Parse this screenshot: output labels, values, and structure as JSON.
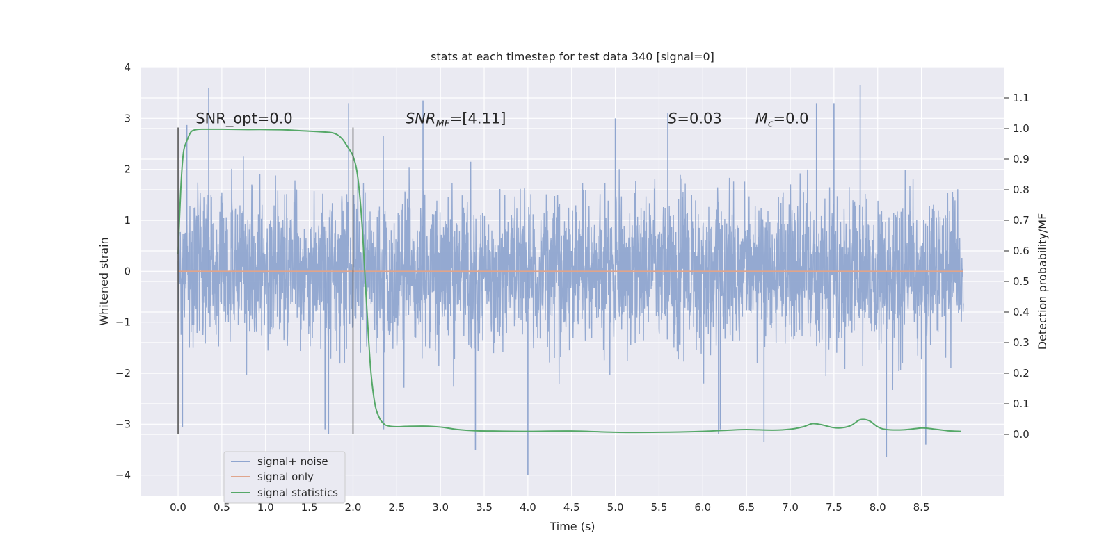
{
  "chart_data": {
    "type": "line",
    "title": "stats at each timestep for test data 340 [signal=0]",
    "xlabel": "Time (s)",
    "ylabel": "Whitened strain",
    "y2label": "Detection probability/MF",
    "xlim": [
      -0.43,
      9.45
    ],
    "ylim": [
      -4.4,
      4.0
    ],
    "y2lim": [
      -0.2,
      1.2
    ],
    "xticks": [
      0.0,
      0.5,
      1.0,
      1.5,
      2.0,
      2.5,
      3.0,
      3.5,
      4.0,
      4.5,
      5.0,
      5.5,
      6.0,
      6.5,
      7.0,
      7.5,
      8.0,
      8.5
    ],
    "xtick_labels": [
      "0.0",
      "0.5",
      "1.0",
      "1.5",
      "2.0",
      "2.5",
      "3.0",
      "3.5",
      "4.0",
      "4.5",
      "5.0",
      "5.5",
      "6.0",
      "6.5",
      "7.0",
      "7.5",
      "8.0",
      "8.5"
    ],
    "yticks": [
      -4,
      -3,
      -2,
      -1,
      0,
      1,
      2,
      3,
      4
    ],
    "ytick_labels": [
      "−4",
      "−3",
      "−2",
      "−1",
      "0",
      "1",
      "2",
      "3",
      "4"
    ],
    "y2ticks": [
      0.0,
      0.1,
      0.2,
      0.3,
      0.4,
      0.5,
      0.6,
      0.7,
      0.8,
      0.9,
      1.0,
      1.1
    ],
    "y2tick_labels": [
      "0.0",
      "0.1",
      "0.2",
      "0.3",
      "0.4",
      "0.5",
      "0.6",
      "0.7",
      "0.8",
      "0.9",
      "1.0",
      "1.1"
    ],
    "grid": true,
    "legend_position": "lower-left",
    "vlines": [
      {
        "x": 0.0,
        "ymin": -3.2,
        "ymax": 2.82
      },
      {
        "x": 2.0,
        "ymin": -3.2,
        "ymax": 2.82
      }
    ],
    "annotations": [
      {
        "name": "snr-opt",
        "parts": [
          {
            "t": "SNR_opt=0.0",
            "style": "normal"
          }
        ],
        "x": 0.2,
        "y": 2.9
      },
      {
        "name": "snr-mf",
        "parts": [
          {
            "t": "SNR",
            "style": "italic"
          },
          {
            "t": "MF",
            "style": "italic-sub"
          },
          {
            "t": "=[4.11]",
            "style": "normal"
          }
        ],
        "x": 2.6,
        "y": 2.9
      },
      {
        "name": "s-value",
        "parts": [
          {
            "t": "S",
            "style": "italic"
          },
          {
            "t": "=0.03",
            "style": "normal"
          }
        ],
        "x": 5.6,
        "y": 2.9
      },
      {
        "name": "mc-value",
        "parts": [
          {
            "t": "M",
            "style": "italic"
          },
          {
            "t": "c",
            "style": "italic-sub"
          },
          {
            "t": "=0.0",
            "style": "normal"
          }
        ],
        "x": 6.6,
        "y": 2.9
      }
    ],
    "series": [
      {
        "name": "signal+ noise",
        "color": "#8fa5cf",
        "axis": "left",
        "kind": "noise",
        "t_range": [
          0.0,
          8.98
        ],
        "seed": 340,
        "std": 0.75,
        "peaks": [
          [
            0.35,
            3.6
          ],
          [
            0.1,
            2.87
          ],
          [
            1.95,
            3.3
          ],
          [
            2.8,
            3.35
          ],
          [
            3.4,
            -3.5
          ],
          [
            4.0,
            -4.0
          ],
          [
            6.2,
            -3.1
          ],
          [
            6.18,
            -3.2
          ],
          [
            6.7,
            -3.35
          ],
          [
            7.3,
            3.3
          ],
          [
            7.5,
            3.3
          ],
          [
            7.8,
            3.65
          ],
          [
            8.1,
            -3.65
          ],
          [
            8.55,
            -3.4
          ],
          [
            1.72,
            -3.2
          ],
          [
            1.68,
            -3.1
          ],
          [
            2.35,
            -3.1
          ],
          [
            5.0,
            3.0
          ],
          [
            5.6,
            3.1
          ],
          [
            0.05,
            -3.05
          ]
        ]
      },
      {
        "name": "signal only",
        "color": "#e0a58c",
        "axis": "left",
        "kind": "flat",
        "x": [
          0.0,
          8.98
        ],
        "y": [
          0.0,
          0.0
        ]
      },
      {
        "name": "signal statistics",
        "color": "#55a868",
        "axis": "right",
        "kind": "line",
        "x": [
          0.0,
          0.03,
          0.06,
          0.1,
          0.15,
          0.22,
          0.3,
          0.5,
          0.8,
          1.0,
          1.2,
          1.4,
          1.6,
          1.75,
          1.82,
          1.88,
          1.95,
          2.0,
          2.05,
          2.1,
          2.15,
          2.2,
          2.25,
          2.3,
          2.35,
          2.4,
          2.5,
          2.6,
          2.8,
          3.0,
          3.2,
          3.4,
          3.6,
          4.0,
          4.5,
          5.0,
          5.5,
          6.0,
          6.3,
          6.5,
          6.8,
          7.0,
          7.15,
          7.25,
          7.35,
          7.5,
          7.6,
          7.7,
          7.8,
          7.9,
          8.0,
          8.1,
          8.3,
          8.5,
          8.6,
          8.8,
          8.95
        ],
        "y": [
          0.59,
          0.8,
          0.92,
          0.96,
          0.99,
          0.997,
          0.998,
          0.998,
          0.997,
          0.997,
          0.996,
          0.993,
          0.99,
          0.987,
          0.98,
          0.965,
          0.935,
          0.91,
          0.85,
          0.7,
          0.45,
          0.22,
          0.1,
          0.055,
          0.035,
          0.028,
          0.025,
          0.026,
          0.027,
          0.024,
          0.016,
          0.012,
          0.011,
          0.01,
          0.011,
          0.007,
          0.007,
          0.01,
          0.014,
          0.016,
          0.014,
          0.017,
          0.025,
          0.035,
          0.032,
          0.022,
          0.022,
          0.03,
          0.048,
          0.045,
          0.025,
          0.016,
          0.015,
          0.021,
          0.019,
          0.012,
          0.01
        ]
      }
    ]
  }
}
